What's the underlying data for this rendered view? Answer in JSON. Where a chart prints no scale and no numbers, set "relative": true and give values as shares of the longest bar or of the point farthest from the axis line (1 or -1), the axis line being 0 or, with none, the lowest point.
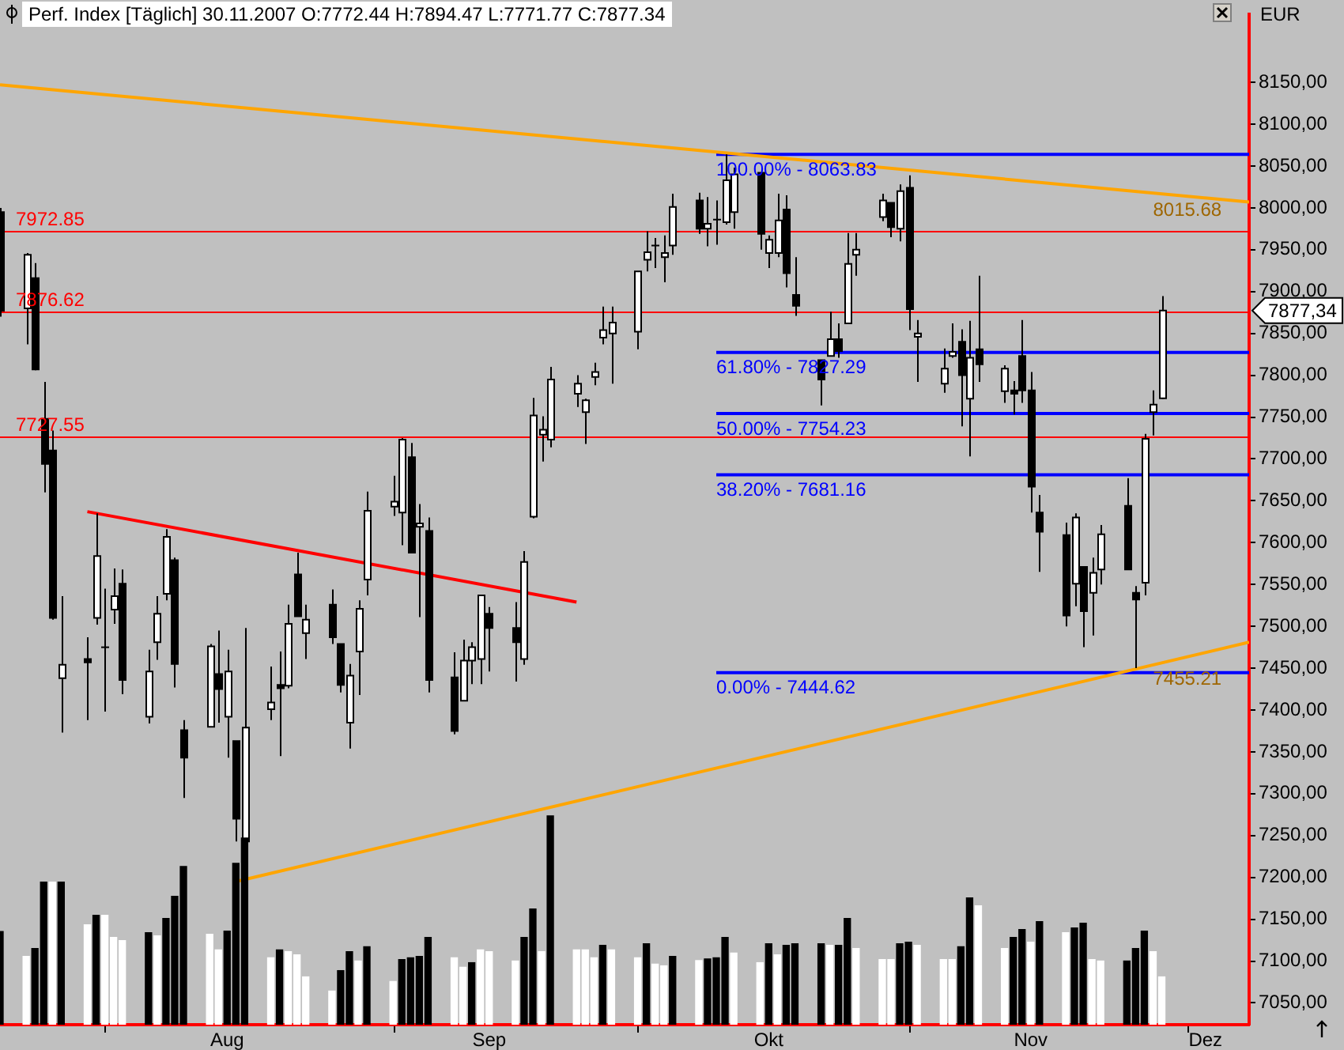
{
  "chart_data": [
    {
      "type": "candlestick",
      "title": "Perf. Index [Täglich] 30.11.2007 O:7772.44 H:7894.47 L:7771.77 C:7877.34",
      "ylabel": "EUR",
      "x": [
        "2007-07-20",
        "2007-07-23",
        "2007-07-24",
        "2007-07-25",
        "2007-07-26",
        "2007-07-27",
        "2007-07-30",
        "2007-07-31",
        "2007-08-01",
        "2007-08-02",
        "2007-08-03",
        "2007-08-06",
        "2007-08-07",
        "2007-08-08",
        "2007-08-09",
        "2007-08-10",
        "2007-08-13",
        "2007-08-14",
        "2007-08-15",
        "2007-08-16",
        "2007-08-17",
        "2007-08-20",
        "2007-08-21",
        "2007-08-22",
        "2007-08-23",
        "2007-08-24",
        "2007-08-27",
        "2007-08-28",
        "2007-08-29",
        "2007-08-30",
        "2007-08-31",
        "2007-09-03",
        "2007-09-04",
        "2007-09-05",
        "2007-09-06",
        "2007-09-07",
        "2007-09-10",
        "2007-09-11",
        "2007-09-12",
        "2007-09-13",
        "2007-09-14",
        "2007-09-17",
        "2007-09-18",
        "2007-09-19",
        "2007-09-20",
        "2007-09-21",
        "2007-09-24",
        "2007-09-25",
        "2007-09-26",
        "2007-09-27",
        "2007-09-28",
        "2007-10-01",
        "2007-10-02",
        "2007-10-03",
        "2007-10-04",
        "2007-10-05",
        "2007-10-08",
        "2007-10-09",
        "2007-10-10",
        "2007-10-11",
        "2007-10-12",
        "2007-10-15",
        "2007-10-16",
        "2007-10-17",
        "2007-10-18",
        "2007-10-19",
        "2007-10-22",
        "2007-10-23",
        "2007-10-24",
        "2007-10-25",
        "2007-10-26",
        "2007-10-29",
        "2007-10-30",
        "2007-10-31",
        "2007-11-01",
        "2007-11-02",
        "2007-11-05",
        "2007-11-06",
        "2007-11-07",
        "2007-11-08",
        "2007-11-09",
        "2007-11-12",
        "2007-11-13",
        "2007-11-14",
        "2007-11-15",
        "2007-11-16",
        "2007-11-19",
        "2007-11-20",
        "2007-11-21",
        "2007-11-22",
        "2007-11-23",
        "2007-11-26",
        "2007-11-27",
        "2007-11-28",
        "2007-11-29",
        "2007-11-30"
      ],
      "ohlc": [
        [
          7995,
          8000,
          7870,
          7877
        ],
        [
          7880,
          7946,
          7837,
          7944
        ],
        [
          7916,
          7934,
          7806,
          7807
        ],
        [
          7748,
          7792,
          7660,
          7694
        ],
        [
          7710,
          7734,
          7508,
          7510
        ],
        [
          7438,
          7536,
          7373,
          7454
        ],
        [
          7461,
          7487,
          7388,
          7457
        ],
        [
          7510,
          7635,
          7502,
          7584
        ],
        [
          7475,
          7545,
          7398,
          7475
        ],
        [
          7520,
          7569,
          7503,
          7536
        ],
        [
          7551,
          7568,
          7419,
          7436
        ],
        [
          7392,
          7472,
          7384,
          7446
        ],
        [
          7481,
          7536,
          7460,
          7515
        ],
        [
          7539,
          7616,
          7531,
          7607
        ],
        [
          7579,
          7582,
          7427,
          7455
        ],
        [
          7376,
          7388,
          7295,
          7343
        ],
        [
          7380,
          7479,
          7380,
          7476
        ],
        [
          7443,
          7495,
          7385,
          7425
        ],
        [
          7392,
          7472,
          7343,
          7446
        ],
        [
          7363,
          7363,
          7243,
          7270
        ],
        [
          7243,
          7498,
          7230,
          7379
        ],
        [
          7401,
          7452,
          7388,
          7409
        ],
        [
          7430,
          7470,
          7345,
          7426
        ],
        [
          7429,
          7526,
          7426,
          7503
        ],
        [
          7562,
          7588,
          7512,
          7512
        ],
        [
          7492,
          7526,
          7461,
          7508
        ],
        [
          7526,
          7544,
          7479,
          7487
        ],
        [
          7479,
          7479,
          7421,
          7430
        ],
        [
          7385,
          7455,
          7354,
          7441
        ],
        [
          7470,
          7531,
          7418,
          7521
        ],
        [
          7556,
          7661,
          7537,
          7638
        ],
        [
          7643,
          7680,
          7632,
          7649
        ],
        [
          7636,
          7725,
          7597,
          7723
        ],
        [
          7702,
          7719,
          7588,
          7588
        ],
        [
          7619,
          7646,
          7511,
          7623
        ],
        [
          7614,
          7630,
          7421,
          7436
        ],
        [
          7439,
          7469,
          7371,
          7375
        ],
        [
          7411,
          7484,
          7411,
          7459
        ],
        [
          7459,
          7481,
          7431,
          7475
        ],
        [
          7461,
          7537,
          7431,
          7537
        ],
        [
          7515,
          7523,
          7446,
          7498
        ],
        [
          7498,
          7529,
          7434,
          7481
        ],
        [
          7461,
          7590,
          7454,
          7577
        ],
        [
          7631,
          7773,
          7629,
          7752
        ],
        [
          7729,
          7751,
          7697,
          7735
        ],
        [
          7723,
          7810,
          7714,
          7795
        ],
        [
          7778,
          7800,
          7762,
          7790
        ],
        [
          7756,
          7772,
          7718,
          7770
        ],
        [
          7798,
          7815,
          7788,
          7804
        ],
        [
          7845,
          7882,
          7837,
          7854
        ],
        [
          7850,
          7882,
          7790,
          7863
        ],
        [
          7852,
          7924,
          7831,
          7924
        ],
        [
          7938,
          7972,
          7924,
          7947
        ],
        [
          7955,
          7964,
          7928,
          7954
        ],
        [
          7941,
          7967,
          7911,
          7946
        ],
        [
          7955,
          8017,
          7944,
          8001
        ],
        [
          8009,
          8018,
          7969,
          7975
        ],
        [
          7975,
          8013,
          7954,
          7981
        ],
        [
          7986,
          8009,
          7956,
          7986
        ],
        [
          7983,
          8064,
          7980,
          8033
        ],
        [
          7995,
          8048,
          7975,
          8040
        ],
        [
          8042,
          8042,
          7950,
          7969
        ],
        [
          7946,
          7967,
          7928,
          7962
        ],
        [
          7946,
          8017,
          7941,
          7985
        ],
        [
          7998,
          8015,
          7905,
          7922
        ],
        [
          7896,
          7941,
          7871,
          7883
        ],
        [
          7818,
          7818,
          7764,
          7795
        ],
        [
          7823,
          7876,
          7823,
          7843
        ],
        [
          7843,
          7862,
          7821,
          7829
        ],
        [
          7862,
          7970,
          7862,
          7933
        ],
        [
          7944,
          7970,
          7919,
          7950
        ],
        [
          7989,
          8017,
          7984,
          8009
        ],
        [
          8006,
          8006,
          7965,
          7977
        ],
        [
          7975,
          8028,
          7960,
          8020
        ],
        [
          8024,
          8039,
          7854,
          7879
        ],
        [
          7846,
          7866,
          7792,
          7850
        ],
        [
          7790,
          7832,
          7779,
          7808
        ],
        [
          7823,
          7862,
          7821,
          7828
        ],
        [
          7840,
          7855,
          7739,
          7800
        ],
        [
          7772,
          7865,
          7703,
          7821
        ],
        [
          7831,
          7919,
          7792,
          7813
        ],
        [
          7781,
          7812,
          7767,
          7808
        ],
        [
          7782,
          7793,
          7753,
          7778
        ],
        [
          7823,
          7866,
          7767,
          7782
        ],
        [
          7782,
          7804,
          7636,
          7667
        ],
        [
          7636,
          7657,
          7565,
          7613
        ],
        [
          7609,
          7624,
          7500,
          7513
        ],
        [
          7551,
          7635,
          7524,
          7630
        ],
        [
          7571,
          7571,
          7475,
          7518
        ],
        [
          7540,
          7582,
          7489,
          7564
        ],
        [
          7568,
          7621,
          7550,
          7610
        ],
        [
          7644,
          7677,
          7568,
          7568
        ],
        [
          7540,
          7548,
          7450,
          7532
        ],
        [
          7552,
          7730,
          7537,
          7724
        ],
        [
          7756,
          7782,
          7728,
          7765
        ],
        [
          7772.44,
          7894.47,
          7771.77,
          7877.34
        ]
      ],
      "series": [
        {
          "type": "line",
          "color": "#ffa500",
          "x": [
            "2007-07-20",
            "2007-12-10"
          ],
          "values": [
            8147,
            8007
          ]
        },
        {
          "type": "line",
          "color": "#ffa500",
          "x": [
            "2007-08-16",
            "2007-12-10"
          ],
          "values": [
            7195,
            7481
          ]
        },
        {
          "type": "line",
          "color": "#ff0000",
          "x": [
            "2007-07-30",
            "2007-09-24"
          ],
          "values": [
            7637,
            7529
          ]
        },
        {
          "type": "line",
          "color": "#0000ff",
          "x": [
            "2007-10-10",
            "2007-12-10"
          ],
          "values": [
            8063.83,
            8063.83
          ]
        },
        {
          "type": "line",
          "color": "#0000ff",
          "x": [
            "2007-10-10",
            "2007-12-10"
          ],
          "values": [
            7827.29,
            7827.29
          ]
        },
        {
          "type": "line",
          "color": "#0000ff",
          "x": [
            "2007-10-10",
            "2007-12-10"
          ],
          "values": [
            7754.23,
            7754.23
          ]
        },
        {
          "type": "line",
          "color": "#0000ff",
          "x": [
            "2007-10-10",
            "2007-12-10"
          ],
          "values": [
            7681.16,
            7681.16
          ]
        },
        {
          "type": "line",
          "color": "#0000ff",
          "x": [
            "2007-10-10",
            "2007-12-10"
          ],
          "values": [
            7444.62,
            7444.62
          ]
        }
      ],
      "ref_lines": [
        {
          "axis": "y",
          "value": 7972.85,
          "label": "7972.85",
          "color": "#ff0000"
        },
        {
          "axis": "y",
          "value": 7876.62,
          "label": "7876.62",
          "color": "#ff0000"
        },
        {
          "axis": "y",
          "value": 7727.55,
          "label": "7727.55",
          "color": "#ff0000"
        }
      ],
      "annotations": [
        {
          "text": "100.00% - 8063.83",
          "x": "2007-10-10",
          "y": 8063.83
        },
        {
          "text": "61.80% - 7827.29",
          "x": "2007-10-10",
          "y": 7827.29
        },
        {
          "text": "50.00% - 7754.23",
          "x": "2007-10-10",
          "y": 7754.23
        },
        {
          "text": "38.20% - 7681.16",
          "x": "2007-10-10",
          "y": 7681.16
        },
        {
          "text": "0.00% - 7444.62",
          "x": "2007-10-10",
          "y": 7444.62
        },
        {
          "text": "8015.68",
          "x": "2007-11-29",
          "y": 8015.68
        },
        {
          "text": "7455.21",
          "x": "2007-11-29",
          "y": 7455.21
        },
        "7877,34"
      ],
      "xlim": [
        "2007-07-20",
        "2007-12-10"
      ],
      "xticks": [
        {
          "value": "2007-08-01",
          "label": null
        },
        {
          "value": "2007-08-15",
          "label": "Aug"
        },
        {
          "value": "2007-09-03",
          "label": null
        },
        {
          "value": "2007-09-14",
          "label": "Sep"
        },
        {
          "value": "2007-10-01",
          "label": null
        },
        {
          "value": "2007-10-16",
          "label": "Okt"
        },
        {
          "value": "2007-11-01",
          "label": null
        },
        {
          "value": "2007-11-15",
          "label": "Nov"
        },
        {
          "value": "2007-12-03",
          "label": null
        },
        {
          "value": "2007-12-05",
          "label": "Dez"
        }
      ],
      "ylim": [
        7024,
        8231
      ],
      "yticks": [
        {
          "value": 7050,
          "label": "7050,00"
        },
        {
          "value": 7100,
          "label": "7100,00"
        },
        {
          "value": 7150,
          "label": "7150,00"
        },
        {
          "value": 7200,
          "label": "7200,00"
        },
        {
          "value": 7250,
          "label": "7250,00"
        },
        {
          "value": 7300,
          "label": "7300,00"
        },
        {
          "value": 7350,
          "label": "7350,00"
        },
        {
          "value": 7400,
          "label": "7400,00"
        },
        {
          "value": 7450,
          "label": "7450,00"
        },
        {
          "value": 7500,
          "label": "7500,00"
        },
        {
          "value": 7550,
          "label": "7550,00"
        },
        {
          "value": 7600,
          "label": "7600,00"
        },
        {
          "value": 7650,
          "label": "7650,00"
        },
        {
          "value": 7700,
          "label": "7700,00"
        },
        {
          "value": 7750,
          "label": "7750,00"
        },
        {
          "value": 7800,
          "label": "7800,00"
        },
        {
          "value": 7850,
          "label": "7850,00"
        },
        {
          "value": 7900,
          "label": "7900,00"
        },
        {
          "value": 7950,
          "label": "7950,00"
        },
        {
          "value": 8000,
          "label": "8000,00"
        },
        {
          "value": 8050,
          "label": "8050,00"
        },
        {
          "value": 8100,
          "label": "8100,00"
        },
        {
          "value": 8150,
          "label": "8150,00"
        }
      ]
    },
    {
      "type": "bar",
      "relative": true,
      "tick_labels": false,
      "xlim": [
        "2007-07-20",
        "2007-12-10"
      ],
      "x": [
        "2007-07-20",
        "2007-07-23",
        "2007-07-24",
        "2007-07-25",
        "2007-07-26",
        "2007-07-27",
        "2007-07-30",
        "2007-07-31",
        "2007-08-01",
        "2007-08-02",
        "2007-08-03",
        "2007-08-06",
        "2007-08-07",
        "2007-08-08",
        "2007-08-09",
        "2007-08-10",
        "2007-08-13",
        "2007-08-14",
        "2007-08-15",
        "2007-08-16",
        "2007-08-17",
        "2007-08-20",
        "2007-08-21",
        "2007-08-22",
        "2007-08-23",
        "2007-08-24",
        "2007-08-27",
        "2007-08-28",
        "2007-08-29",
        "2007-08-30",
        "2007-08-31",
        "2007-09-03",
        "2007-09-04",
        "2007-09-05",
        "2007-09-06",
        "2007-09-07",
        "2007-09-10",
        "2007-09-11",
        "2007-09-12",
        "2007-09-13",
        "2007-09-14",
        "2007-09-17",
        "2007-09-18",
        "2007-09-19",
        "2007-09-20",
        "2007-09-21",
        "2007-09-24",
        "2007-09-25",
        "2007-09-26",
        "2007-09-27",
        "2007-09-28",
        "2007-10-01",
        "2007-10-02",
        "2007-10-03",
        "2007-10-04",
        "2007-10-05",
        "2007-10-08",
        "2007-10-09",
        "2007-10-10",
        "2007-10-11",
        "2007-10-12",
        "2007-10-15",
        "2007-10-16",
        "2007-10-17",
        "2007-10-18",
        "2007-10-19",
        "2007-10-22",
        "2007-10-23",
        "2007-10-24",
        "2007-10-25",
        "2007-10-26",
        "2007-10-29",
        "2007-10-30",
        "2007-10-31",
        "2007-11-01",
        "2007-11-02",
        "2007-11-05",
        "2007-11-06",
        "2007-11-07",
        "2007-11-08",
        "2007-11-09",
        "2007-11-12",
        "2007-11-13",
        "2007-11-14",
        "2007-11-15",
        "2007-11-16",
        "2007-11-19",
        "2007-11-20",
        "2007-11-21",
        "2007-11-22",
        "2007-11-23",
        "2007-11-26",
        "2007-11-27",
        "2007-11-28",
        "2007-11-29",
        "2007-11-30"
      ],
      "values": [
        0.446,
        0.327,
        0.365,
        0.683,
        0.683,
        0.683,
        0.479,
        0.524,
        0.524,
        0.418,
        0.403,
        0.441,
        0.426,
        0.509,
        0.615,
        0.758,
        0.433,
        0.358,
        0.448,
        0.773,
        0.894,
        0.32,
        0.358,
        0.35,
        0.335,
        0.229,
        0.161,
        0.259,
        0.35,
        0.305,
        0.373,
        0.207,
        0.312,
        0.32,
        0.327,
        0.418,
        0.32,
        0.275,
        0.297,
        0.358,
        0.35,
        0.305,
        0.418,
        0.554,
        0.35,
        1,
        0.358,
        0.358,
        0.32,
        0.38,
        0.358,
        0.32,
        0.388,
        0.29,
        0.282,
        0.327,
        0.307,
        0.315,
        0.32,
        0.418,
        0.343,
        0.297,
        0.388,
        0.335,
        0.38,
        0.388,
        0.388,
        0.38,
        0.38,
        0.509,
        0.365,
        0.312,
        0.312,
        0.388,
        0.395,
        0.38,
        0.312,
        0.312,
        0.373,
        0.607,
        0.569,
        0.365,
        0.418,
        0.456,
        0.395,
        0.494,
        0.441,
        0.463,
        0.486,
        0.312,
        0.305,
        0.305,
        0.365,
        0.448,
        0.35,
        0.229
      ],
      "colors": [
        "#000000",
        "#ffffff",
        "#000000",
        "#000000",
        "#ffffff",
        "#000000",
        "#ffffff",
        "#000000",
        "#ffffff",
        "#ffffff",
        "#ffffff",
        "#000000",
        "#ffffff",
        "#000000",
        "#000000",
        "#000000",
        "#ffffff",
        "#ffffff",
        "#000000",
        "#000000",
        "#000000",
        "#ffffff",
        "#000000",
        "#ffffff",
        "#ffffff",
        "#ffffff",
        "#ffffff",
        "#000000",
        "#000000",
        "#ffffff",
        "#000000",
        "#ffffff",
        "#000000",
        "#000000",
        "#000000",
        "#000000",
        "#ffffff",
        "#ffffff",
        "#000000",
        "#ffffff",
        "#ffffff",
        "#ffffff",
        "#000000",
        "#000000",
        "#ffffff",
        "#000000",
        "#ffffff",
        "#ffffff",
        "#ffffff",
        "#000000",
        "#ffffff",
        "#ffffff",
        "#000000",
        "#ffffff",
        "#ffffff",
        "#000000",
        "#ffffff",
        "#000000",
        "#000000",
        "#000000",
        "#ffffff",
        "#ffffff",
        "#000000",
        "#ffffff",
        "#000000",
        "#000000",
        "#000000",
        "#ffffff",
        "#000000",
        "#000000",
        "#ffffff",
        "#ffffff",
        "#ffffff",
        "#000000",
        "#000000",
        "#ffffff",
        "#ffffff",
        "#ffffff",
        "#000000",
        "#000000",
        "#ffffff",
        "#ffffff",
        "#000000",
        "#000000",
        "#ffffff",
        "#000000",
        "#ffffff",
        "#000000",
        "#000000",
        "#ffffff",
        "#ffffff",
        "#000000",
        "#000000",
        "#000000",
        "#ffffff",
        "#ffffff"
      ]
    }
  ]
}
